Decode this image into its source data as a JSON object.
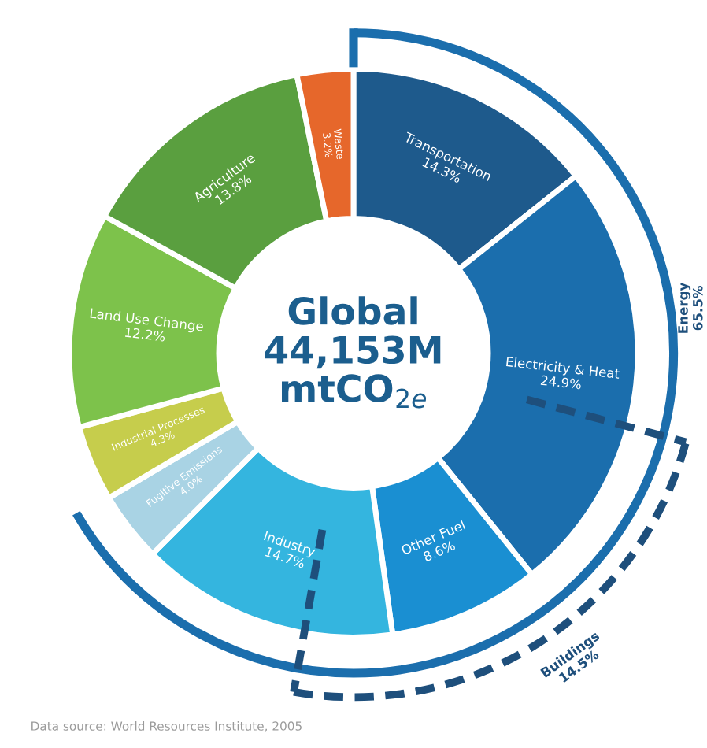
{
  "chart_data": {
    "type": "donut",
    "title": "Global\n44,153M\nmtCO$_{2e}$",
    "categories": [
      "Transportation",
      "Electricity & Heat",
      "Other Fuel",
      "Industry",
      "Fugitive Emissions",
      "Industrial Processes",
      "Land Use Change",
      "Agriculture",
      "Waste"
    ],
    "values": [
      14.3,
      24.9,
      8.6,
      14.7,
      4.0,
      4.3,
      12.2,
      13.8,
      3.2
    ],
    "value_labels": [
      "14.3%",
      "24.9%",
      "8.6%",
      "14.7%",
      "4.0%",
      "4.3%",
      "12.2%",
      "13.8%",
      "3.2%"
    ],
    "colors": [
      "#1e5a8c",
      "#1b6ead",
      "#1a8fd2",
      "#34b5df",
      "#a9d3e4",
      "#c6cd4c",
      "#7dc24b",
      "#5a9f3f",
      "#e6672b"
    ],
    "annotations": [
      "Energy 65.5%",
      "Buildings 14.5%",
      "Data source: World Resources Institute, 2005"
    ]
  }
}
